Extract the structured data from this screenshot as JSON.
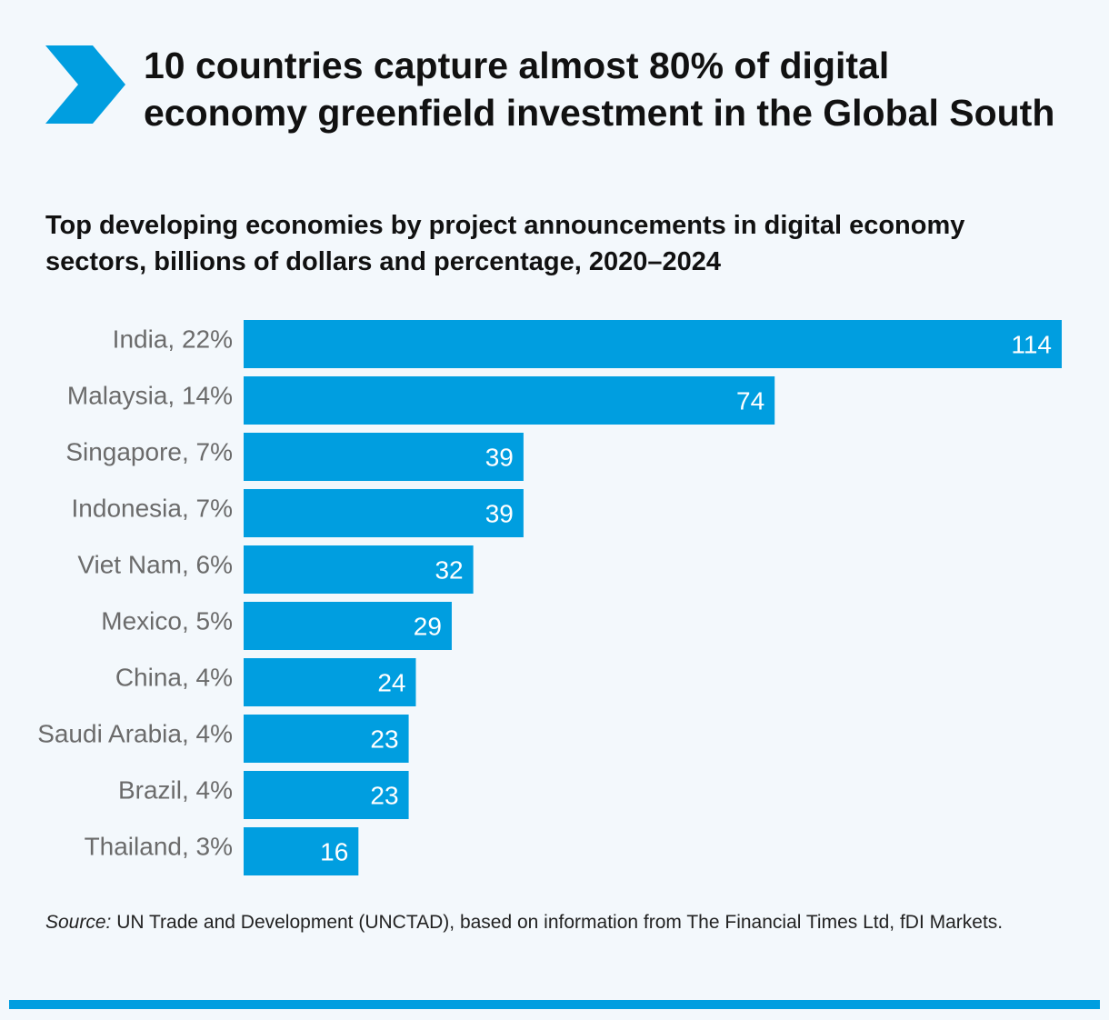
{
  "colors": {
    "accent": "#009ee0",
    "background": "#f3f8fc",
    "label": "#6b6b6b",
    "value_text": "#ffffff"
  },
  "header": {
    "icon": "chevron-right-icon",
    "title": "10 countries capture almost 80% of digital economy greenfield investment in the Global South"
  },
  "chart_data": {
    "type": "bar",
    "orientation": "horizontal",
    "title": "10 countries capture almost 80% of digital economy greenfield investment in the Global South",
    "subtitle": "Top developing economies by project announcements in digital economy sectors, billions of dollars and percentage, 2020–2024",
    "categories": [
      "India, 22%",
      "Malaysia, 14%",
      "Singapore, 7%",
      "Indonesia, 7%",
      "Viet Nam, 6%",
      "Mexico, 5%",
      "China, 4%",
      "Saudi Arabia, 4%",
      "Brazil, 4%",
      "Thailand, 3%"
    ],
    "values": [
      114,
      74,
      39,
      39,
      32,
      29,
      24,
      23,
      23,
      16
    ],
    "xlabel": "",
    "ylabel": "",
    "xlim": [
      0,
      114
    ],
    "grid": false,
    "legend": "none"
  },
  "footer": {
    "source_label": "Source:",
    "source_text": " UN Trade and Development (UNCTAD), based on information from The Financial Times Ltd, fDI Markets."
  }
}
